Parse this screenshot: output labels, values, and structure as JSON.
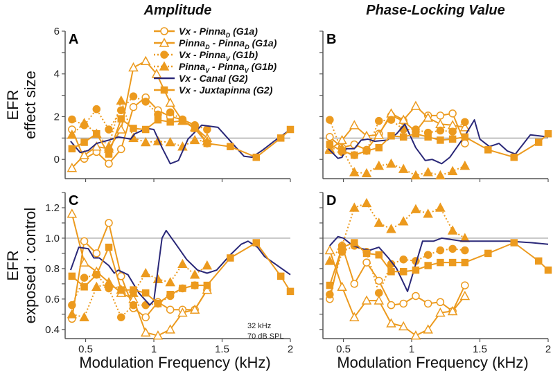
{
  "colors": {
    "orange": "#EC9A1E",
    "navy": "#2A2878",
    "reference": "#999999"
  },
  "legend": [
    {
      "key": "vx_pinnaD",
      "marker": "circle",
      "fill": "open",
      "dash": false,
      "parts": [
        {
          "t": "Vx - Pinna"
        },
        {
          "t": "D",
          "sub": true
        },
        {
          "t": " (G1a)"
        }
      ]
    },
    {
      "key": "pinnaD_pinnaD",
      "marker": "triangle",
      "fill": "open",
      "dash": false,
      "parts": [
        {
          "t": "Pinna"
        },
        {
          "t": "D",
          "sub": true
        },
        {
          "t": " - Pinna"
        },
        {
          "t": "D",
          "sub": true
        },
        {
          "t": " (G1a)"
        }
      ]
    },
    {
      "key": "vx_pinnaV",
      "marker": "circle",
      "fill": "filled",
      "dash": true,
      "parts": [
        {
          "t": "Vx - Pinna"
        },
        {
          "t": "V",
          "sub": true
        },
        {
          "t": " (G1b)"
        }
      ]
    },
    {
      "key": "pinnaV_pinnaV",
      "marker": "triangle",
      "fill": "filled",
      "dash": true,
      "parts": [
        {
          "t": "Pinna"
        },
        {
          "t": "V",
          "sub": true
        },
        {
          "t": " - Pinna"
        },
        {
          "t": "V",
          "sub": true
        },
        {
          "t": " (G1b)"
        }
      ]
    },
    {
      "key": "vx_canal",
      "marker": "none",
      "fill": "none",
      "dash": false,
      "color": "navy",
      "parts": [
        {
          "t": "Vx - Canal (G2)"
        }
      ]
    },
    {
      "key": "vx_juxtapinna",
      "marker": "square",
      "fill": "filled",
      "dash": false,
      "parts": [
        {
          "t": "Vx - Juxtapinna (G2)"
        }
      ]
    }
  ],
  "annotation": [
    "32 kHz",
    "70 dB SPL"
  ],
  "chart_data": [
    {
      "panel": "A",
      "type": "line",
      "title": "Amplitude",
      "ylabel": [
        "EFR",
        "effect size"
      ],
      "xlabel": "",
      "xlim": [
        0.35,
        2.0
      ],
      "ylim": [
        -0.9,
        6
      ],
      "reference_line": 1,
      "xticks": [
        0.5,
        1,
        1.5,
        2
      ],
      "xtick_labels": [],
      "yticks": [
        0,
        2,
        4,
        6
      ],
      "ytick_labels": [
        "0",
        "2",
        "4",
        "6"
      ],
      "yminor": [
        -1,
        1,
        3,
        5
      ],
      "series": [
        {
          "key": "vx_pinnaD",
          "x": [
            0.4,
            0.49,
            0.58,
            0.67,
            0.76,
            0.85,
            0.94,
            1.03,
            1.12,
            1.21,
            1.3,
            1.39
          ],
          "y": [
            1.4,
            0.03,
            0.35,
            -0.2,
            0.48,
            2.45,
            2.9,
            2.3,
            2.0,
            1.87,
            1.6,
            0.75
          ]
        },
        {
          "key": "pinnaD_pinnaD",
          "x": [
            0.4,
            0.49,
            0.58,
            0.67,
            0.76,
            0.85,
            0.94,
            1.02,
            1.12,
            1.21,
            1.3,
            1.39
          ],
          "y": [
            -0.4,
            0.2,
            0.6,
            0.5,
            1.4,
            4.3,
            4.6,
            4.0,
            2.65,
            1.8,
            1.5,
            1.0
          ]
        },
        {
          "key": "vx_pinnaV",
          "x": [
            0.4,
            0.49,
            0.58,
            0.67,
            0.76,
            0.85,
            0.94,
            1.03,
            1.12,
            1.21,
            1.3,
            1.39
          ],
          "y": [
            1.87,
            1.6,
            2.35,
            1.4,
            2.3,
            2.95,
            2.7,
            2.1,
            2.2,
            1.85,
            1.6,
            1.4
          ]
        },
        {
          "key": "pinnaV_pinnaV",
          "x": [
            0.4,
            0.49,
            0.58,
            0.67,
            0.76,
            0.85,
            0.94,
            1.03,
            1.12,
            1.21,
            1.3,
            1.39
          ],
          "y": [
            1.15,
            1.7,
            1.2,
            0.6,
            2.75,
            1.0,
            0.8,
            0.85,
            0.8,
            0.6,
            0.9,
            0.85
          ]
        },
        {
          "key": "vx_canal",
          "x": [
            0.39,
            0.46,
            0.52,
            0.58,
            0.67,
            0.74,
            0.83,
            0.86,
            0.95,
            1.0,
            1.06,
            1.12,
            1.18,
            1.25,
            1.35,
            1.47,
            1.54,
            1.66,
            1.72,
            1.8,
            1.88,
            2.0
          ],
          "y": [
            0.85,
            0.32,
            0.42,
            0.75,
            0.9,
            1.05,
            0.95,
            1.2,
            1.45,
            1.4,
            0.55,
            -0.2,
            -0.05,
            0.95,
            1.6,
            1.5,
            1.0,
            0.15,
            0.1,
            0.45,
            0.85,
            1.4
          ]
        },
        {
          "key": "vx_juxtapinna",
          "x": [
            0.4,
            0.49,
            0.58,
            0.67,
            0.76,
            0.85,
            0.94,
            1.03,
            1.12,
            1.21,
            1.3,
            1.39,
            1.56,
            1.75,
            1.93,
            2.0
          ],
          "y": [
            0.5,
            0.8,
            1.2,
            0.25,
            1.9,
            1.45,
            1.4,
            1.85,
            1.75,
            1.8,
            1.45,
            0.75,
            0.6,
            0.1,
            1.0,
            1.4
          ]
        }
      ]
    },
    {
      "panel": "B",
      "type": "line",
      "title": "Phase-Locking Value",
      "ylabel": [],
      "xlabel": "",
      "xlim": [
        0.35,
        2.0
      ],
      "ylim": [
        -0.9,
        6
      ],
      "reference_line": 1,
      "xticks": [
        0.5,
        1,
        1.5,
        2
      ],
      "xtick_labels": [],
      "yticks": [
        0,
        2,
        4,
        6
      ],
      "ytick_labels": [],
      "yminor": [
        -1,
        1,
        3,
        5
      ],
      "series": [
        {
          "key": "vx_pinnaD",
          "x": [
            0.4,
            0.49,
            0.58,
            0.67,
            0.76,
            0.85,
            0.94,
            1.03,
            1.12,
            1.21,
            1.3,
            1.39
          ],
          "y": [
            1.05,
            0.55,
            0.7,
            0.45,
            1.2,
            2.05,
            1.8,
            1.3,
            2.05,
            2.05,
            2.15,
            0.75
          ]
        },
        {
          "key": "pinnaD_pinnaD",
          "x": [
            0.4,
            0.49,
            0.58,
            0.67,
            0.76,
            0.85,
            0.94,
            1.03,
            1.12,
            1.21,
            1.3,
            1.39
          ],
          "y": [
            0.45,
            0.9,
            1.6,
            1.1,
            1.15,
            2.15,
            1.85,
            2.5,
            1.95,
            1.65,
            1.6,
            1.5
          ]
        },
        {
          "key": "vx_pinnaV",
          "x": [
            0.4,
            0.49,
            0.58,
            0.67,
            0.76,
            0.85,
            0.94,
            1.03,
            1.12,
            1.21,
            1.3,
            1.39
          ],
          "y": [
            1.85,
            0.35,
            0.2,
            0.4,
            1.8,
            1.85,
            1.4,
            1.4,
            1.25,
            1.35,
            1.3,
            1.75
          ]
        },
        {
          "key": "pinnaV_pinnaV",
          "x": [
            0.4,
            0.49,
            0.58,
            0.67,
            0.76,
            0.85,
            0.94,
            1.03,
            1.12,
            1.21,
            1.3,
            1.39
          ],
          "y": [
            0.5,
            0.5,
            -0.6,
            -0.65,
            -0.3,
            -0.2,
            -0.45,
            -0.75,
            -0.6,
            -0.75,
            -0.55,
            -0.3
          ]
        },
        {
          "key": "vx_canal",
          "x": [
            0.39,
            0.46,
            0.49,
            0.52,
            0.58,
            0.63,
            0.68,
            0.73,
            0.82,
            0.89,
            0.95,
            1.03,
            1.1,
            1.15,
            1.22,
            1.28,
            1.39,
            1.46,
            1.5,
            1.57,
            1.64,
            1.7,
            1.76,
            1.87,
            2.0
          ],
          "y": [
            0.5,
            0.05,
            0.1,
            0.5,
            0.5,
            0.9,
            0.95,
            0.85,
            0.9,
            1.2,
            1.65,
            0.55,
            -0.05,
            0,
            -0.2,
            0.1,
            1.1,
            1.85,
            0.95,
            0.6,
            0.75,
            0.4,
            0.25,
            1.15,
            1.05
          ]
        },
        {
          "key": "vx_juxtapinna",
          "x": [
            0.4,
            0.49,
            0.58,
            0.67,
            0.76,
            0.85,
            0.94,
            1.03,
            1.12,
            1.21,
            1.3,
            1.39,
            1.56,
            1.75,
            1.93,
            2.0
          ],
          "y": [
            0.7,
            0.4,
            0.2,
            0.4,
            0.55,
            1.1,
            1.05,
            1.2,
            1.05,
            0.9,
            0.95,
            1.05,
            0.45,
            0.1,
            0.8,
            1.2
          ]
        }
      ]
    },
    {
      "panel": "C",
      "type": "line",
      "title": "",
      "ylabel": [
        "EFR",
        "exposed : control"
      ],
      "xlabel": "Modulation Frequency (kHz)",
      "xlim": [
        0.35,
        2.0
      ],
      "ylim": [
        0.34,
        1.3
      ],
      "reference_line": 1,
      "xticks": [
        0.5,
        1,
        1.5,
        2
      ],
      "xtick_labels": [
        "0.5",
        "1",
        "1.5",
        "2"
      ],
      "yticks": [
        0.4,
        0.6,
        0.8,
        1.0,
        1.2
      ],
      "ytick_labels": [
        "0.4",
        "0.6",
        "0.8",
        "1.0",
        "1.2"
      ],
      "yminor": [
        0.5,
        0.7,
        0.9,
        1.1,
        1.3
      ],
      "series": [
        {
          "key": "vx_pinnaD",
          "x": [
            0.4,
            0.49,
            0.58,
            0.67,
            0.76,
            0.85,
            0.94,
            1.03,
            1.12,
            1.21,
            1.3,
            1.39
          ],
          "y": [
            0.47,
            0.98,
            0.9,
            1.1,
            0.75,
            0.54,
            0.48,
            0.58,
            0.53,
            0.53,
            0.53,
            0.66
          ]
        },
        {
          "key": "pinnaD_pinnaD",
          "x": [
            0.4,
            0.49,
            0.58,
            0.67,
            0.76,
            0.85,
            0.94,
            1.03,
            1.12,
            1.21,
            1.3,
            1.39
          ],
          "y": [
            1.16,
            0.84,
            0.78,
            0.71,
            0.64,
            0.6,
            0.38,
            0.36,
            0.4,
            0.51,
            0.53,
            0.66
          ]
        },
        {
          "key": "vx_pinnaV",
          "x": [
            0.4,
            0.49,
            0.58,
            0.67,
            0.76,
            0.85,
            0.94,
            1.03,
            1.12,
            1.21,
            1.3
          ],
          "y": [
            0.56,
            0.74,
            0.76,
            0.67,
            0.48,
            0.56,
            0.56,
            0.57,
            0.62,
            0.67,
            0.69
          ]
        },
        {
          "key": "pinnaV_pinnaV",
          "x": [
            0.4,
            0.49,
            0.58,
            0.67,
            0.76,
            0.85,
            0.94,
            1.03,
            1.12,
            1.21,
            1.3,
            1.39
          ],
          "y": [
            0.5,
            0.48,
            0.68,
            0.7,
            0.66,
            0.64,
            0.77,
            0.73,
            0.71,
            0.83,
            0.76,
            0.82
          ]
        },
        {
          "key": "vx_canal",
          "x": [
            0.39,
            0.45,
            0.52,
            0.56,
            0.6,
            0.67,
            0.71,
            0.74,
            0.81,
            0.89,
            0.97,
            1.0,
            1.06,
            1.09,
            1.17,
            1.24,
            1.32,
            1.39,
            1.46,
            1.56,
            1.64,
            1.69,
            1.76,
            1.81,
            2.0
          ],
          "y": [
            0.79,
            0.94,
            0.93,
            0.87,
            0.87,
            0.82,
            0.77,
            0.79,
            0.76,
            0.64,
            0.56,
            0.59,
            1.0,
            1.05,
            0.95,
            0.86,
            0.79,
            0.77,
            0.79,
            0.89,
            0.96,
            0.98,
            0.94,
            0.88,
            0.76
          ]
        },
        {
          "key": "vx_juxtapinna",
          "x": [
            0.4,
            0.49,
            0.58,
            0.67,
            0.76,
            0.85,
            0.94,
            1.03,
            1.12,
            1.21,
            1.3,
            1.39,
            1.56,
            1.75,
            1.93,
            2.0
          ],
          "y": [
            0.75,
            0.68,
            0.76,
            0.94,
            0.66,
            0.66,
            0.64,
            0.57,
            0.63,
            0.67,
            0.69,
            0.69,
            0.87,
            0.97,
            0.75,
            0.65
          ]
        }
      ]
    },
    {
      "panel": "D",
      "type": "line",
      "title": "",
      "ylabel": [],
      "xlabel": "Modulation Frequency (kHz)",
      "xlim": [
        0.35,
        2.0
      ],
      "ylim": [
        0.34,
        1.3
      ],
      "reference_line": 1,
      "xticks": [
        0.5,
        1,
        1.5,
        2
      ],
      "xtick_labels": [
        "0.5",
        "1",
        "1.5",
        "2"
      ],
      "yticks": [
        0.4,
        0.6,
        0.8,
        1.0,
        1.2
      ],
      "ytick_labels": [],
      "yminor": [
        0.5,
        0.7,
        0.9,
        1.1,
        1.3
      ],
      "series": [
        {
          "key": "vx_pinnaD",
          "x": [
            0.4,
            0.49,
            0.58,
            0.67,
            0.76,
            0.85,
            0.94,
            1.03,
            1.12,
            1.21,
            1.3,
            1.39
          ],
          "y": [
            0.6,
            0.95,
            0.7,
            0.84,
            0.72,
            0.56,
            0.57,
            0.62,
            0.57,
            0.58,
            0.52,
            0.69
          ]
        },
        {
          "key": "pinnaD_pinnaD",
          "x": [
            0.4,
            0.49,
            0.58,
            0.67,
            0.76,
            0.85,
            0.94,
            1.03,
            1.12,
            1.21,
            1.3,
            1.39
          ],
          "y": [
            0.92,
            0.68,
            0.48,
            0.59,
            0.59,
            0.44,
            0.42,
            0.36,
            0.4,
            0.51,
            0.52,
            0.62
          ]
        },
        {
          "key": "vx_pinnaV",
          "x": [
            0.4,
            0.49,
            0.58,
            0.67,
            0.76,
            0.85,
            0.94,
            1.03,
            1.12,
            1.21,
            1.3,
            1.39
          ],
          "y": [
            0.63,
            0.91,
            0.95,
            0.91,
            0.64,
            0.83,
            0.86,
            0.85,
            0.89,
            0.92,
            0.93,
            0.92
          ]
        },
        {
          "key": "pinnaV_pinnaV",
          "x": [
            0.4,
            0.49,
            0.58,
            0.67,
            0.76,
            0.85,
            0.94,
            1.03,
            1.12,
            1.21,
            1.3,
            1.39
          ],
          "y": [
            0.85,
            0.95,
            1.2,
            1.23,
            1.1,
            1.06,
            1.11,
            1.19,
            1.16,
            1.2,
            1.05,
            1.0
          ]
        },
        {
          "key": "vx_canal",
          "x": [
            0.4,
            0.46,
            0.5,
            0.57,
            0.64,
            0.69,
            0.76,
            0.83,
            0.89,
            0.97,
            1.02,
            1.08,
            1.16,
            1.22,
            1.37,
            1.54,
            1.71,
            1.88,
            2.0
          ],
          "y": [
            0.95,
            1.01,
            1.0,
            0.95,
            0.93,
            0.92,
            0.94,
            0.87,
            0.8,
            0.65,
            0.8,
            0.98,
            0.98,
            1.0,
            0.98,
            0.98,
            0.98,
            0.97,
            0.96
          ]
        },
        {
          "key": "vx_juxtapinna",
          "x": [
            0.4,
            0.49,
            0.58,
            0.67,
            0.76,
            0.85,
            0.94,
            1.03,
            1.12,
            1.21,
            1.3,
            1.39,
            1.56,
            1.75,
            1.93,
            2.0
          ],
          "y": [
            0.69,
            0.94,
            0.97,
            0.9,
            0.89,
            0.78,
            0.78,
            0.79,
            0.82,
            0.84,
            0.84,
            0.84,
            0.9,
            0.97,
            0.85,
            0.79
          ]
        }
      ]
    }
  ]
}
